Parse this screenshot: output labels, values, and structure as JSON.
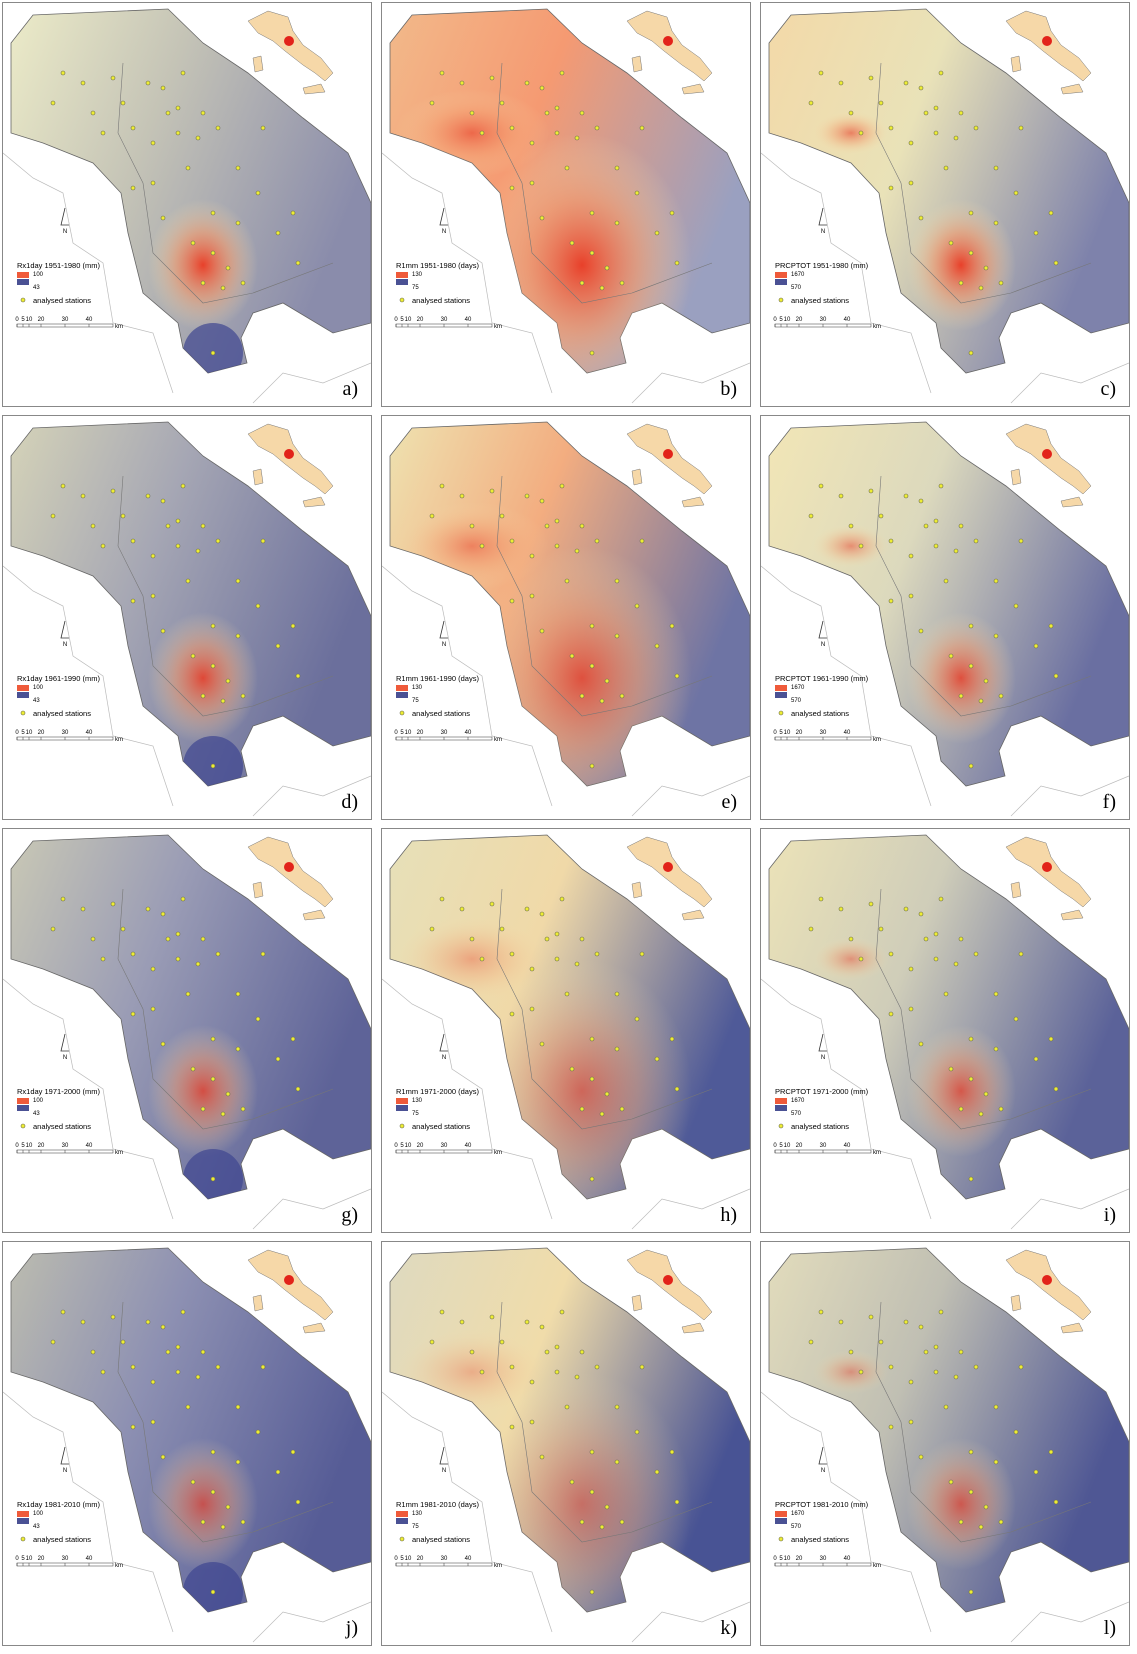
{
  "panels": [
    {
      "label": "a)",
      "legend_title": "Rx1day 1951-1980 (mm)",
      "legend_max": 100,
      "legend_min": 43,
      "stations_label": "analysed stations",
      "north": "N",
      "scale_ticks": [
        0,
        5,
        10,
        20,
        30,
        40
      ],
      "scale_unit": "km"
    },
    {
      "label": "b)",
      "legend_title": "R1mm 1951-1980 (days)",
      "legend_max": 130,
      "legend_min": 75,
      "stations_label": "analysed stations",
      "north": "N",
      "scale_ticks": [
        0,
        5,
        10,
        20,
        30,
        40
      ],
      "scale_unit": "km"
    },
    {
      "label": "c)",
      "legend_title": "PRCPTOT 1951-1980 (mm)",
      "legend_max": 1670,
      "legend_min": 570,
      "stations_label": "analysed stations",
      "north": "N",
      "scale_ticks": [
        0,
        5,
        10,
        20,
        30,
        40
      ],
      "scale_unit": "km"
    },
    {
      "label": "d)",
      "legend_title": "Rx1day 1961-1990 (mm)",
      "legend_max": 100,
      "legend_min": 43,
      "stations_label": "analysed stations",
      "north": "N",
      "scale_ticks": [
        0,
        5,
        10,
        20,
        30,
        40
      ],
      "scale_unit": "km"
    },
    {
      "label": "e)",
      "legend_title": "R1mm 1961-1990 (days)",
      "legend_max": 130,
      "legend_min": 75,
      "stations_label": "analysed stations",
      "north": "N",
      "scale_ticks": [
        0,
        5,
        10,
        20,
        30,
        40
      ],
      "scale_unit": "km"
    },
    {
      "label": "f)",
      "legend_title": "PRCPTOT 1961-1990 (mm)",
      "legend_max": 1670,
      "legend_min": 570,
      "stations_label": "analysed stations",
      "north": "N",
      "scale_ticks": [
        0,
        5,
        10,
        20,
        30,
        40
      ],
      "scale_unit": "km"
    },
    {
      "label": "g)",
      "legend_title": "Rx1day 1971-2000 (mm)",
      "legend_max": 100,
      "legend_min": 43,
      "stations_label": "analysed stations",
      "north": "N",
      "scale_ticks": [
        0,
        5,
        10,
        20,
        30,
        40
      ],
      "scale_unit": "km"
    },
    {
      "label": "h)",
      "legend_title": "R1mm 1971-2000 (days)",
      "legend_max": 130,
      "legend_min": 75,
      "stations_label": "analysed stations",
      "north": "N",
      "scale_ticks": [
        0,
        5,
        10,
        20,
        30,
        40
      ],
      "scale_unit": "km"
    },
    {
      "label": "i)",
      "legend_title": "PRCPTOT 1971-2000 (mm)",
      "legend_max": 1670,
      "legend_min": 570,
      "stations_label": "analysed stations",
      "north": "N",
      "scale_ticks": [
        0,
        5,
        10,
        20,
        30,
        40
      ],
      "scale_unit": "km"
    },
    {
      "label": "j)",
      "legend_title": "Rx1day 1981-2010 (mm)",
      "legend_max": 100,
      "legend_min": 43,
      "stations_label": "analysed stations",
      "north": "N",
      "scale_ticks": [
        0,
        5,
        10,
        20,
        30,
        40
      ],
      "scale_unit": "km"
    },
    {
      "label": "k)",
      "legend_title": "R1mm 1981-2010 (days)",
      "legend_max": 130,
      "legend_min": 75,
      "stations_label": "analysed stations",
      "north": "N",
      "scale_ticks": [
        0,
        5,
        10,
        20,
        30,
        40
      ],
      "scale_unit": "km"
    },
    {
      "label": "l)",
      "legend_title": "PRCPTOT 1981-2010 (mm)",
      "legend_max": 1670,
      "legend_min": 570,
      "stations_label": "analysed stations",
      "north": "N",
      "scale_ticks": [
        0,
        5,
        10,
        20,
        30,
        40
      ],
      "scale_unit": "km"
    }
  ]
}
